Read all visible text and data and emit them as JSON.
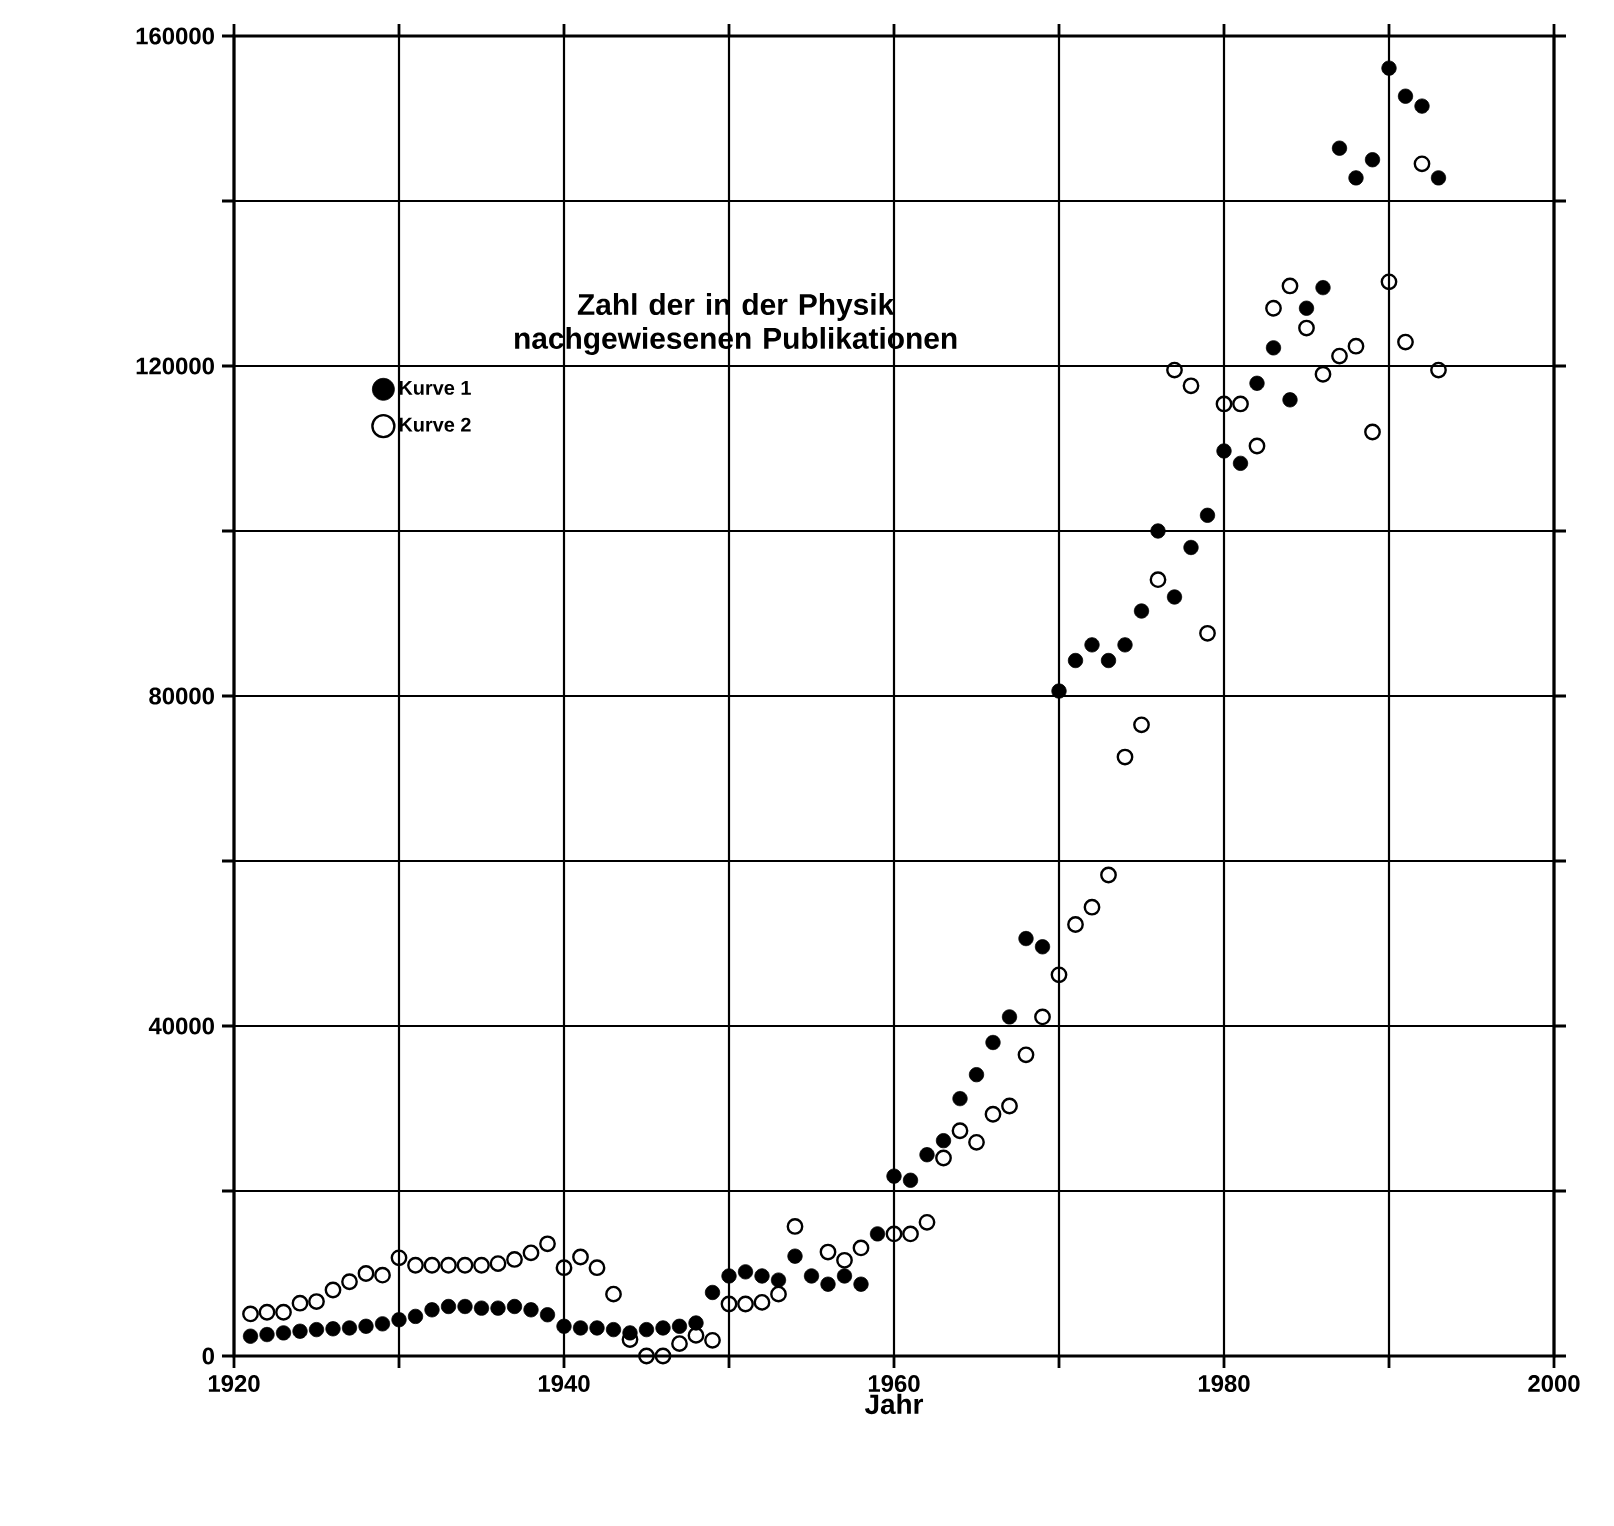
{
  "chart_data": {
    "type": "scatter",
    "legend_title": "Zahl der in der Physik nachgewiesenen Publikationen",
    "xlabel": "Jahr",
    "x": [
      1921,
      1922,
      1923,
      1924,
      1925,
      1926,
      1927,
      1928,
      1929,
      1930,
      1931,
      1932,
      1933,
      1934,
      1935,
      1936,
      1937,
      1938,
      1939,
      1940,
      1941,
      1942,
      1943,
      1944,
      1945,
      1946,
      1947,
      1948,
      1949,
      1950,
      1951,
      1952,
      1953,
      1954,
      1955,
      1956,
      1957,
      1958,
      1959,
      1960,
      1961,
      1962,
      1963,
      1964,
      1965,
      1966,
      1967,
      1968,
      1969,
      1970,
      1971,
      1972,
      1973,
      1974,
      1975,
      1976,
      1977,
      1978,
      1979,
      1980,
      1981,
      1982,
      1983,
      1984,
      1985,
      1986,
      1987,
      1988,
      1989,
      1990,
      1991,
      1992,
      1993
    ],
    "series": [
      {
        "name": "Kurve 1",
        "color": "#000000",
        "values": [
          2400,
          2600,
          2800,
          3000,
          3200,
          3300,
          3400,
          3600,
          3900,
          4400,
          4800,
          5600,
          6000,
          6000,
          5800,
          5800,
          6000,
          5600,
          5000,
          3600,
          3400,
          3400,
          3200,
          2800,
          3200,
          3400,
          3600,
          4000,
          7700,
          9700,
          10200,
          9700,
          9200,
          12100,
          9700,
          8700,
          9700,
          8700,
          14800,
          21800,
          21300,
          24400,
          26100,
          31200,
          34100,
          38000,
          41100,
          50600,
          49600,
          80600,
          84300,
          86200,
          84300,
          86200,
          90300,
          100000,
          92000,
          98000,
          101900,
          109700,
          108200,
          117900,
          122200,
          115900,
          127000,
          129500,
          146400,
          142800,
          145000,
          156100,
          152700,
          151500,
          142800
        ]
      },
      {
        "name": "Kurve 2",
        "color": "#000000",
        "values": [
          5100,
          5300,
          5300,
          6400,
          6600,
          8000,
          9000,
          10000,
          9800,
          11900,
          11000,
          11000,
          11000,
          11000,
          11000,
          11200,
          11700,
          12500,
          13600,
          10700,
          12000,
          10700,
          7500,
          2000,
          0,
          0,
          1500,
          2500,
          1900,
          6300,
          6300,
          6500,
          7500,
          15700,
          null,
          12600,
          11600,
          13100,
          null,
          14800,
          14800,
          16200,
          24000,
          27300,
          25900,
          29300,
          30300,
          36500,
          41100,
          46200,
          52300,
          54400,
          58300,
          72600,
          76500,
          94100,
          119500,
          117600,
          87600,
          115400,
          115400,
          110300,
          127000,
          129700,
          124600,
          119000,
          121200,
          122400,
          112000,
          130200,
          122900,
          144500,
          119500
        ]
      }
    ],
    "xlim": [
      1920,
      2000
    ],
    "ylim": [
      0,
      160000
    ],
    "xticks": [
      1920,
      {
        "value": 1930,
        "label": null
      },
      1940,
      {
        "value": 1950,
        "label": null
      },
      1960,
      {
        "value": 1970,
        "label": null
      },
      1980,
      {
        "value": 1990,
        "label": null
      },
      2000
    ],
    "yticks": [
      0,
      {
        "value": 20000,
        "label": null
      },
      40000,
      {
        "value": 60000,
        "label": null
      },
      80000,
      {
        "value": 100000,
        "label": null
      },
      120000,
      {
        "value": 140000,
        "label": null
      },
      160000
    ],
    "grid": true,
    "legend": "top left",
    "marker": "circle"
  }
}
